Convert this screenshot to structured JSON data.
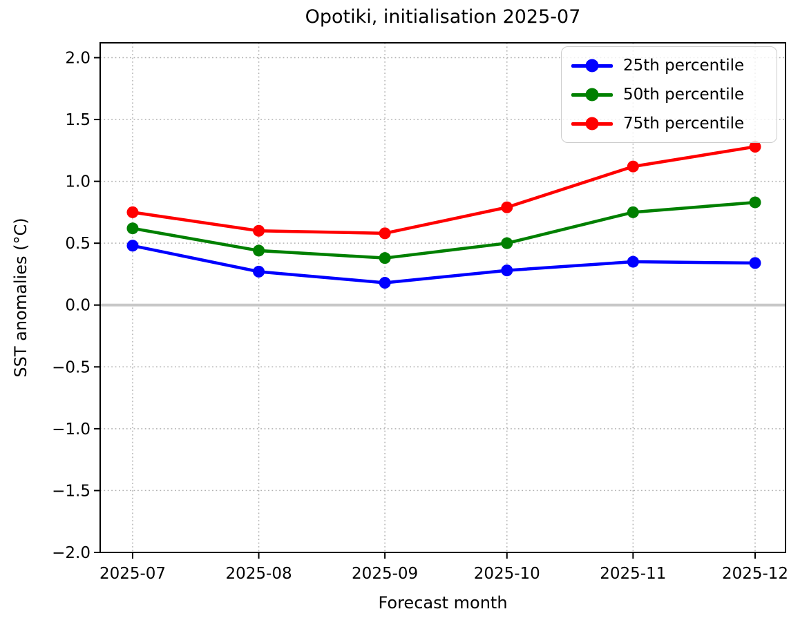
{
  "chart_data": {
    "type": "line",
    "title": "Opotiki, initialisation 2025-07",
    "xlabel": "Forecast month",
    "ylabel": "SST anomalies (°C)",
    "categories": [
      "2025-07",
      "2025-08",
      "2025-09",
      "2025-10",
      "2025-11",
      "2025-12"
    ],
    "series": [
      {
        "name": "25th percentile",
        "color": "#0000ff",
        "values": [
          0.48,
          0.27,
          0.18,
          0.28,
          0.35,
          0.34
        ]
      },
      {
        "name": "50th percentile",
        "color": "#008000",
        "values": [
          0.62,
          0.44,
          0.38,
          0.5,
          0.75,
          0.83
        ]
      },
      {
        "name": "75th percentile",
        "color": "#ff0000",
        "values": [
          0.75,
          0.6,
          0.58,
          0.79,
          1.12,
          1.28
        ]
      }
    ],
    "ylim": [
      -2.0,
      2.12
    ],
    "yticks": [
      2.0,
      1.5,
      1.0,
      0.5,
      0.0,
      -0.5,
      -1.0,
      -1.5,
      -2.0
    ],
    "grid": true,
    "grid_style": "dotted",
    "grid_color": "#b0b0b0",
    "zero_line": true,
    "zero_line_color": "#c8c8c8",
    "axis_color": "#000000",
    "legend_position": "upper right"
  }
}
